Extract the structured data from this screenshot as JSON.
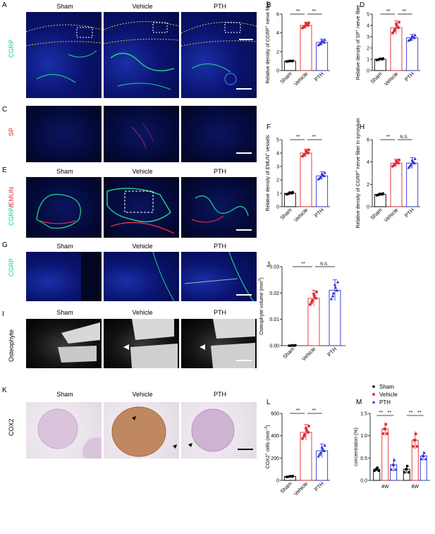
{
  "panel_letters": [
    "A",
    "B",
    "C",
    "D",
    "E",
    "F",
    "G",
    "H",
    "I",
    "J",
    "K",
    "L",
    "M"
  ],
  "columns": [
    "Sham",
    "Vehicle",
    "PTH"
  ],
  "row_labels": {
    "A": "CGRP",
    "C": "SP",
    "E_green": "CGRP",
    "E_red": "EMUN",
    "G": "CGRP",
    "I": "Osteophyte",
    "K": "COX2"
  },
  "colors": {
    "sham": "#000000",
    "vehicle": "#e8262b",
    "pth": "#2a2fd6",
    "green": "#1fd080",
    "red": "#ff3050"
  },
  "chart_data": [
    {
      "id": "B",
      "type": "bar",
      "categories": [
        "Sham",
        "Vehicle",
        "PTH"
      ],
      "values": [
        1.0,
        4.8,
        3.0
      ],
      "errors": [
        0.05,
        0.35,
        0.35
      ],
      "ylabel_parts": [
        "Relative density of CGRP",
        "+",
        " nerve fiber"
      ],
      "ylim": [
        0,
        6
      ],
      "yticks": [
        0,
        2,
        4,
        6
      ],
      "sig": [
        "**",
        "**"
      ]
    },
    {
      "id": "D",
      "type": "bar",
      "categories": [
        "Sham",
        "Vehicle",
        "PTH"
      ],
      "values": [
        1.0,
        3.8,
        2.9
      ],
      "errors": [
        0.08,
        0.6,
        0.3
      ],
      "ylabel_parts": [
        "Relative density of SP",
        "+",
        " nerve fiber"
      ],
      "ylim": [
        0,
        5
      ],
      "yticks": [
        0,
        1,
        2,
        3,
        4,
        5
      ],
      "sig": [
        "**",
        "**"
      ]
    },
    {
      "id": "F",
      "type": "bar",
      "categories": [
        "Sham",
        "Vehicle",
        "PTH"
      ],
      "values": [
        1.0,
        4.0,
        2.3
      ],
      "errors": [
        0.1,
        0.3,
        0.3
      ],
      "ylabel_parts": [
        "Relative density of EMUN",
        "+",
        " vessels"
      ],
      "ylim": [
        0,
        5
      ],
      "yticks": [
        0,
        1,
        2,
        3,
        4,
        5
      ],
      "sig": [
        "**",
        "**"
      ]
    },
    {
      "id": "H",
      "type": "bar",
      "categories": [
        "Sham",
        "Vehicle",
        "PTH"
      ],
      "values": [
        1.1,
        3.9,
        3.9
      ],
      "errors": [
        0.1,
        0.35,
        0.5
      ],
      "ylabel_parts": [
        "Relative density of CGRP",
        "+",
        " nerve fiber in synovium"
      ],
      "ylim": [
        0,
        6
      ],
      "yticks": [
        0,
        2,
        4,
        6
      ],
      "sig": [
        "**",
        "N.S."
      ]
    },
    {
      "id": "J",
      "type": "bar",
      "categories": [
        "Sham",
        "Vehicle",
        "PTH"
      ],
      "values": [
        0.0,
        0.018,
        0.021
      ],
      "errors": [
        0.0002,
        0.003,
        0.004
      ],
      "ylabel_parts": [
        "Osteophyte volume (mm",
        "3",
        ")"
      ],
      "ylim": [
        0,
        0.03
      ],
      "yticks": [
        0.0,
        0.01,
        0.02,
        0.03
      ],
      "sig": [
        "**",
        "N.S."
      ]
    },
    {
      "id": "L",
      "type": "bar",
      "categories": [
        "Sham",
        "Vehicle",
        "PTH"
      ],
      "values": [
        35,
        430,
        265
      ],
      "errors": [
        5,
        70,
        60
      ],
      "ylabel_parts": [
        "COX2",
        "+",
        " cells (mm",
        "−2",
        ")"
      ],
      "ylim": [
        0,
        600
      ],
      "yticks": [
        0,
        200,
        400,
        600
      ],
      "sig": [
        "**",
        "**"
      ]
    },
    {
      "id": "M",
      "type": "bar",
      "categories": [
        "4W",
        "8W"
      ],
      "series": [
        {
          "name": "Sham",
          "values": [
            0.25,
            0.25
          ],
          "errors": [
            0.05,
            0.1
          ]
        },
        {
          "name": "Vehicle",
          "values": [
            1.15,
            0.9
          ],
          "errors": [
            0.15,
            0.2
          ]
        },
        {
          "name": "PTH",
          "values": [
            0.35,
            0.55
          ],
          "errors": [
            0.15,
            0.1
          ]
        }
      ],
      "ylabel": "concentration (%)",
      "ylim": [
        0,
        1.5
      ],
      "yticks": [
        0.0,
        0.5,
        1.0,
        1.5
      ],
      "sig": [
        "**",
        "**",
        "**",
        "**"
      ]
    }
  ]
}
